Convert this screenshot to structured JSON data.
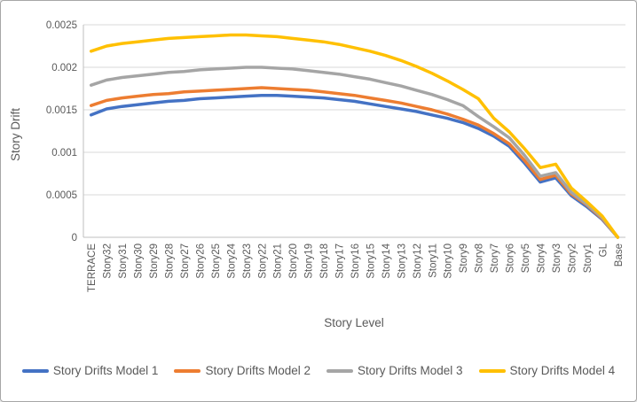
{
  "chart_data": {
    "type": "line",
    "title": "",
    "xlabel": "Story Level",
    "ylabel": "Story Drift",
    "ylim": [
      0,
      0.0025
    ],
    "yticks": [
      0,
      0.0005,
      0.001,
      0.0015,
      0.002,
      0.0025
    ],
    "ytick_labels": [
      "0",
      "0.0005",
      "0.001",
      "0.0015",
      "0.002",
      "0.0025"
    ],
    "grid": true,
    "legend_position": "bottom",
    "categories": [
      "TERRACE",
      "Story32",
      "Story31",
      "Story30",
      "Story29",
      "Story28",
      "Story27",
      "Story26",
      "Story25",
      "Story24",
      "Story23",
      "Story22",
      "Story21",
      "Story20",
      "Story19",
      "Story18",
      "Story17",
      "Story16",
      "Story15",
      "Story14",
      "Story13",
      "Story12",
      "Story11",
      "Story10",
      "Story9",
      "Story8",
      "Story7",
      "Story6",
      "Story5",
      "Story4",
      "Story3",
      "Story2",
      "Story1",
      "GL",
      "Base"
    ],
    "series": [
      {
        "name": "Story Drifts Model 1",
        "color": "#4472C4",
        "values": [
          0.00144,
          0.00151,
          0.00154,
          0.00156,
          0.00158,
          0.0016,
          0.00161,
          0.00163,
          0.00164,
          0.00165,
          0.00166,
          0.00167,
          0.00167,
          0.00166,
          0.00165,
          0.00164,
          0.00162,
          0.0016,
          0.00157,
          0.00154,
          0.00151,
          0.00148,
          0.00144,
          0.0014,
          0.00135,
          0.00128,
          0.00119,
          0.00107,
          0.00087,
          0.00065,
          0.0007,
          0.00049,
          0.00036,
          0.00021,
          0
        ]
      },
      {
        "name": "Story Drifts Model 2",
        "color": "#ED7D31",
        "values": [
          0.00155,
          0.00161,
          0.00164,
          0.00166,
          0.00168,
          0.00169,
          0.00171,
          0.00172,
          0.00173,
          0.00174,
          0.00175,
          0.00176,
          0.00175,
          0.00174,
          0.00173,
          0.00171,
          0.00169,
          0.00167,
          0.00164,
          0.00161,
          0.00158,
          0.00154,
          0.0015,
          0.00145,
          0.00139,
          0.00132,
          0.00122,
          0.0011,
          0.0009,
          0.00068,
          0.00073,
          0.00051,
          0.00038,
          0.00022,
          0
        ]
      },
      {
        "name": "Story Drifts Model 3",
        "color": "#A5A5A5",
        "values": [
          0.00179,
          0.00185,
          0.00188,
          0.0019,
          0.00192,
          0.00194,
          0.00195,
          0.00197,
          0.00198,
          0.00199,
          0.002,
          0.002,
          0.00199,
          0.00198,
          0.00196,
          0.00194,
          0.00192,
          0.00189,
          0.00186,
          0.00182,
          0.00178,
          0.00173,
          0.00168,
          0.00162,
          0.00155,
          0.00142,
          0.0013,
          0.00117,
          0.00096,
          0.00072,
          0.00076,
          0.00053,
          0.00039,
          0.00023,
          0
        ]
      },
      {
        "name": "Story Drifts Model 4",
        "color": "#FFC000",
        "values": [
          0.00219,
          0.00225,
          0.00228,
          0.0023,
          0.00232,
          0.00234,
          0.00235,
          0.00236,
          0.00237,
          0.00238,
          0.00238,
          0.00237,
          0.00236,
          0.00234,
          0.00232,
          0.0023,
          0.00227,
          0.00223,
          0.00219,
          0.00214,
          0.00208,
          0.00201,
          0.00193,
          0.00184,
          0.00174,
          0.00163,
          0.0014,
          0.00124,
          0.00104,
          0.00082,
          0.00086,
          0.00058,
          0.00042,
          0.00025,
          0
        ]
      }
    ],
    "colors": {
      "text": "#595959",
      "gridline": "#D9D9D9",
      "axis": "#BFBFBF",
      "border": "#A6A6A6"
    }
  }
}
